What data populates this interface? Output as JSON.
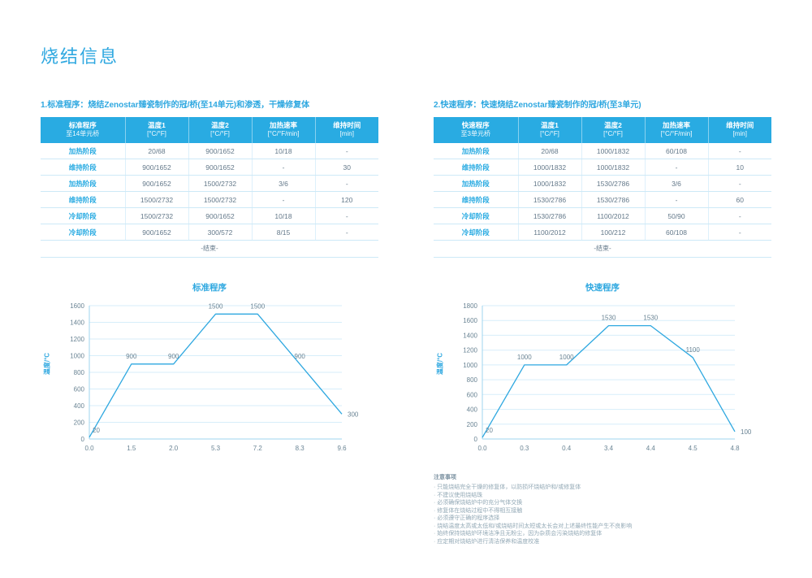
{
  "page": {
    "title": "烧结信息"
  },
  "colors": {
    "accent": "#29abe2",
    "line": "#2fa8e0",
    "grid": "#d7eefa",
    "axis": "#9fd4ef",
    "tick_text": "#6a8494",
    "value_text": "#64798a"
  },
  "sections": [
    {
      "heading": "1.标准程序：烧结Zenostar臻瓷制作的冠/桥(至14单元)和渗透，干燥修复体",
      "table": {
        "header": [
          {
            "line1": "标准程序",
            "line2": "至14单元桥"
          },
          {
            "line1": "温度1",
            "line2": "[°C/°F]"
          },
          {
            "line1": "温度2",
            "line2": "[°C/°F]"
          },
          {
            "line1": "加热速率",
            "line2": "[°C/°F/min]"
          },
          {
            "line1": "维持时间",
            "line2": "[min]"
          }
        ],
        "rows": [
          [
            "加热阶段",
            "20/68",
            "900/1652",
            "10/18",
            "-"
          ],
          [
            "维持阶段",
            "900/1652",
            "900/1652",
            "-",
            "30"
          ],
          [
            "加热阶段",
            "900/1652",
            "1500/2732",
            "3/6",
            "-"
          ],
          [
            "维持阶段",
            "1500/2732",
            "1500/2732",
            "-",
            "120"
          ],
          [
            "冷却阶段",
            "1500/2732",
            "900/1652",
            "10/18",
            "-"
          ],
          [
            "冷却阶段",
            "900/1652",
            "300/572",
            "8/15",
            "-"
          ]
        ],
        "footer": "-结束-"
      }
    },
    {
      "heading": "2.快速程序：快速烧结Zenostar臻瓷制作的冠/桥(至3单元)",
      "table": {
        "header": [
          {
            "line1": "快速程序",
            "line2": "至3单元桥"
          },
          {
            "line1": "温度1",
            "line2": "[°C/°F]"
          },
          {
            "line1": "温度2",
            "line2": "[°C/°F]"
          },
          {
            "line1": "加热速率",
            "line2": "[°C/°F/min]"
          },
          {
            "line1": "维持时间",
            "line2": "[min]"
          }
        ],
        "rows": [
          [
            "加热阶段",
            "20/68",
            "1000/1832",
            "60/108",
            "-"
          ],
          [
            "维持阶段",
            "1000/1832",
            "1000/1832",
            "-",
            "10"
          ],
          [
            "加热阶段",
            "1000/1832",
            "1530/2786",
            "3/6",
            "-"
          ],
          [
            "维持阶段",
            "1530/2786",
            "1530/2786",
            "-",
            "60"
          ],
          [
            "冷却阶段",
            "1530/2786",
            "1100/2012",
            "50/90",
            "-"
          ],
          [
            "冷却阶段",
            "1100/2012",
            "100/212",
            "60/108",
            "-"
          ]
        ],
        "footer": "-结束-"
      }
    }
  ],
  "chart_data": [
    {
      "type": "line",
      "title": "标准程序",
      "ylabel": "温度/°C",
      "xlabel": "",
      "x": [
        0.0,
        1.5,
        2.0,
        5.3,
        7.2,
        8.3,
        9.6
      ],
      "values": [
        20,
        900,
        900,
        1500,
        1500,
        900,
        300
      ],
      "ylim": [
        0,
        1600
      ],
      "ytick_step": 200,
      "grid": true,
      "legend": "none"
    },
    {
      "type": "line",
      "title": "快速程序",
      "ylabel": "温度/°C",
      "xlabel": "",
      "x": [
        0.0,
        0.3,
        0.4,
        3.4,
        4.4,
        4.5,
        4.8
      ],
      "values": [
        20,
        1000,
        1000,
        1530,
        1530,
        1100,
        100
      ],
      "ylim": [
        0,
        1800
      ],
      "ytick_step": 200,
      "grid": true,
      "legend": "none"
    }
  ],
  "notes": {
    "title": "注意事项",
    "items": [
      "只能烧结完全干燥的修复体，以防损坏烧结炉和/或修复体",
      "不建议使用烧结珠",
      "必须确保烧结炉中的充分气体交换",
      "修复体在烧结过程中不得相互接触",
      "必须遵守正确的程序选择",
      "烧结温度太高或太低和/或烧结时间太短或太长会对上述最终性能产生不良影响",
      "始终保持烧结炉环境洁净且无粉尘，因为杂质会污染烧结的修复体",
      "应定期对烧结炉进行清洁保养和温度校准"
    ]
  }
}
